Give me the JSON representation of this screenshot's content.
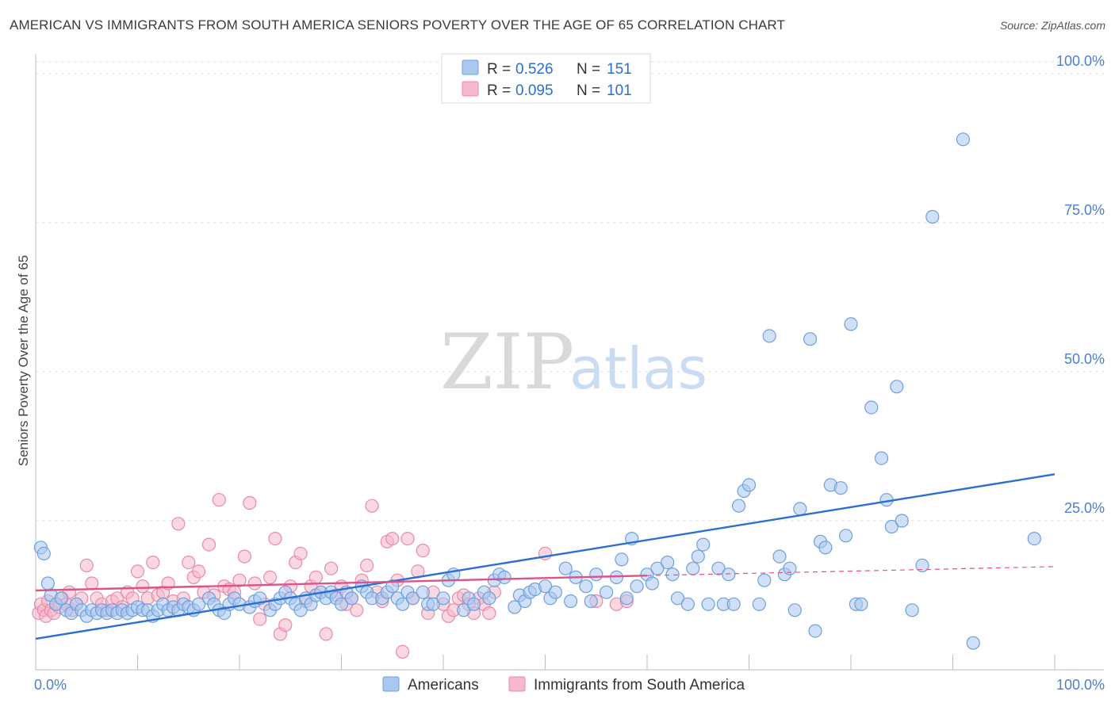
{
  "title": "AMERICAN VS IMMIGRANTS FROM SOUTH AMERICA SENIORS POVERTY OVER THE AGE OF 65 CORRELATION CHART",
  "source": "Source: ZipAtlas.com",
  "watermark": {
    "zip": "ZIP",
    "atlas": "atlas"
  },
  "colors": {
    "americans_fill": "#a9c8f0",
    "americans_stroke": "#6f9fdc",
    "americans_line": "#2a6fd1",
    "immigrants_fill": "#f6b8cb",
    "immigrants_stroke": "#e98aa8",
    "immigrants_line": "#e0518a",
    "tick_text": "#4a7fd1",
    "grid": "#dcdcdc"
  },
  "legend_top": [
    {
      "r_label": "R =",
      "r_value": "0.526",
      "n_label": "N =",
      "n_value": "151",
      "series": "americans"
    },
    {
      "r_label": "R =",
      "r_value": "0.095",
      "n_label": "N =",
      "n_value": "101",
      "series": "immigrants"
    }
  ],
  "chart_data": {
    "type": "scatter",
    "title": "AMERICAN VS IMMIGRANTS FROM SOUTH AMERICA SENIORS POVERTY OVER THE AGE OF 65 CORRELATION CHART",
    "xlabel": "",
    "ylabel": "Seniors Poverty Over the Age of 65",
    "xlim": [
      0,
      100
    ],
    "ylim": [
      0,
      102
    ],
    "y_ticks": [
      {
        "v": 25,
        "label": "25.0%"
      },
      {
        "v": 50,
        "label": "50.0%"
      },
      {
        "v": 75,
        "label": "75.0%"
      },
      {
        "v": 100,
        "label": "100.0%"
      }
    ],
    "x_ticks": [
      {
        "v": 0,
        "label": "0.0%"
      },
      {
        "v": 100,
        "label": "100.0%"
      }
    ],
    "grid": true,
    "legend": "bottom-center",
    "series": [
      {
        "name": "Americans",
        "key": "americans",
        "trend": {
          "x": [
            0,
            100
          ],
          "y": [
            5.2,
            32.8
          ],
          "dashed_from": null
        },
        "points": [
          [
            0.5,
            20.5
          ],
          [
            0.8,
            19.5
          ],
          [
            1.2,
            14.5
          ],
          [
            1.5,
            12.5
          ],
          [
            2,
            11
          ],
          [
            2.5,
            12
          ],
          [
            3,
            10
          ],
          [
            3.5,
            9.5
          ],
          [
            4,
            11
          ],
          [
            4.5,
            10
          ],
          [
            5,
            9
          ],
          [
            5.5,
            10
          ],
          [
            6,
            9.5
          ],
          [
            6.5,
            10
          ],
          [
            7,
            9.5
          ],
          [
            7.5,
            10
          ],
          [
            8,
            9.5
          ],
          [
            8.5,
            10
          ],
          [
            9,
            9.5
          ],
          [
            9.5,
            10
          ],
          [
            10,
            10.5
          ],
          [
            10.5,
            10
          ],
          [
            11,
            10
          ],
          [
            11.5,
            9
          ],
          [
            12,
            10
          ],
          [
            12.5,
            11
          ],
          [
            13,
            10
          ],
          [
            13.5,
            10.5
          ],
          [
            14,
            10
          ],
          [
            14.5,
            11
          ],
          [
            15,
            10.5
          ],
          [
            15.5,
            10
          ],
          [
            16,
            11
          ],
          [
            17,
            12
          ],
          [
            17.5,
            11
          ],
          [
            18,
            10
          ],
          [
            18.5,
            9.5
          ],
          [
            19,
            11
          ],
          [
            19.5,
            12
          ],
          [
            20,
            11
          ],
          [
            21,
            10.5
          ],
          [
            21.5,
            11.5
          ],
          [
            22,
            12
          ],
          [
            23,
            10
          ],
          [
            23.5,
            11
          ],
          [
            24,
            12
          ],
          [
            24.5,
            13
          ],
          [
            25,
            12
          ],
          [
            25.5,
            11
          ],
          [
            26,
            10
          ],
          [
            26.5,
            12
          ],
          [
            27,
            11
          ],
          [
            27.5,
            12.5
          ],
          [
            28,
            13
          ],
          [
            28.5,
            12
          ],
          [
            29,
            13
          ],
          [
            29.5,
            12
          ],
          [
            30,
            11
          ],
          [
            30.5,
            13
          ],
          [
            31,
            12
          ],
          [
            32,
            14
          ],
          [
            32.5,
            13
          ],
          [
            33,
            12
          ],
          [
            34,
            12
          ],
          [
            34.5,
            13
          ],
          [
            35,
            14
          ],
          [
            35.5,
            12
          ],
          [
            36,
            11
          ],
          [
            36.5,
            13
          ],
          [
            37,
            12
          ],
          [
            38,
            13
          ],
          [
            38.5,
            11
          ],
          [
            39,
            11
          ],
          [
            40,
            12
          ],
          [
            40.5,
            15
          ],
          [
            41,
            16
          ],
          [
            42,
            10
          ],
          [
            42.5,
            12
          ],
          [
            43,
            11
          ],
          [
            44,
            13
          ],
          [
            44.5,
            12
          ],
          [
            45,
            15
          ],
          [
            45.5,
            16
          ],
          [
            46,
            15.5
          ],
          [
            47,
            10.5
          ],
          [
            47.5,
            12.5
          ],
          [
            48,
            11.5
          ],
          [
            48.5,
            13
          ],
          [
            49,
            13.5
          ],
          [
            50,
            14
          ],
          [
            50.5,
            12
          ],
          [
            51,
            13
          ],
          [
            52,
            17
          ],
          [
            52.5,
            11.5
          ],
          [
            53,
            15.5
          ],
          [
            54,
            14
          ],
          [
            54.5,
            11.5
          ],
          [
            55,
            16
          ],
          [
            56,
            13
          ],
          [
            57,
            15.5
          ],
          [
            57.5,
            18.5
          ],
          [
            58,
            12
          ],
          [
            58.5,
            22
          ],
          [
            59,
            14
          ],
          [
            60,
            16
          ],
          [
            60.5,
            14.5
          ],
          [
            61,
            17
          ],
          [
            62,
            18
          ],
          [
            62.5,
            16
          ],
          [
            63,
            12
          ],
          [
            64,
            11
          ],
          [
            64.5,
            17
          ],
          [
            65,
            19
          ],
          [
            65.5,
            21
          ],
          [
            66,
            11
          ],
          [
            67,
            17
          ],
          [
            67.5,
            11
          ],
          [
            68,
            16
          ],
          [
            68.5,
            11
          ],
          [
            69,
            27.5
          ],
          [
            69.5,
            30
          ],
          [
            70,
            31
          ],
          [
            71,
            11
          ],
          [
            71.5,
            15
          ],
          [
            72,
            56
          ],
          [
            73,
            19
          ],
          [
            73.5,
            16
          ],
          [
            74,
            17
          ],
          [
            74.5,
            10
          ],
          [
            75,
            27
          ],
          [
            76,
            55.5
          ],
          [
            76.5,
            6.5
          ],
          [
            77,
            21.5
          ],
          [
            77.5,
            20.5
          ],
          [
            78,
            31
          ],
          [
            79,
            30.5
          ],
          [
            79.5,
            22.5
          ],
          [
            80,
            58
          ],
          [
            80.5,
            11
          ],
          [
            81,
            11
          ],
          [
            82,
            44
          ],
          [
            83,
            35.5
          ],
          [
            83.5,
            28.5
          ],
          [
            84,
            24
          ],
          [
            84.5,
            47.5
          ],
          [
            85,
            25
          ],
          [
            86,
            10
          ],
          [
            87,
            17.5
          ],
          [
            88,
            76
          ],
          [
            91,
            89
          ],
          [
            92,
            4.5
          ],
          [
            98,
            22
          ]
        ]
      },
      {
        "name": "Immigrants from South America",
        "key": "immigrants",
        "trend": {
          "x": [
            0,
            60,
            100
          ],
          "y": [
            13.3,
            15.8,
            17.3
          ],
          "dashed_from": 60
        },
        "points": [
          [
            0.3,
            9.5
          ],
          [
            0.5,
            11
          ],
          [
            0.8,
            10
          ],
          [
            1,
            9
          ],
          [
            1.2,
            11.5
          ],
          [
            1.5,
            10
          ],
          [
            1.8,
            9.5
          ],
          [
            2,
            11
          ],
          [
            2.3,
            10.5
          ],
          [
            2.6,
            12
          ],
          [
            3,
            11
          ],
          [
            3.3,
            13
          ],
          [
            3.6,
            10
          ],
          [
            4,
            11
          ],
          [
            4.5,
            12
          ],
          [
            5,
            17.5
          ],
          [
            5.5,
            14.5
          ],
          [
            6,
            12
          ],
          [
            6.5,
            11
          ],
          [
            7,
            10
          ],
          [
            7.5,
            11.5
          ],
          [
            8,
            12
          ],
          [
            8.5,
            10.5
          ],
          [
            9,
            13
          ],
          [
            9.5,
            12
          ],
          [
            10,
            16.5
          ],
          [
            10.5,
            14
          ],
          [
            11,
            12
          ],
          [
            11.5,
            18
          ],
          [
            12,
            12.5
          ],
          [
            12.5,
            13
          ],
          [
            13,
            14.5
          ],
          [
            13.5,
            11.5
          ],
          [
            14,
            24.5
          ],
          [
            14.5,
            12
          ],
          [
            15,
            18
          ],
          [
            15.5,
            15.5
          ],
          [
            16,
            16.5
          ],
          [
            16.5,
            13
          ],
          [
            17,
            21
          ],
          [
            17.5,
            12.5
          ],
          [
            18,
            28.5
          ],
          [
            18.5,
            14
          ],
          [
            19,
            13.5
          ],
          [
            19.5,
            13
          ],
          [
            20,
            15
          ],
          [
            20.5,
            19
          ],
          [
            21,
            28
          ],
          [
            21.5,
            14.5
          ],
          [
            22,
            8.5
          ],
          [
            22.5,
            11
          ],
          [
            23,
            15.5
          ],
          [
            23.5,
            22
          ],
          [
            24,
            6
          ],
          [
            24.5,
            7.5
          ],
          [
            25,
            14
          ],
          [
            25.5,
            18
          ],
          [
            26,
            19.5
          ],
          [
            26.5,
            11.5
          ],
          [
            27,
            14
          ],
          [
            27.5,
            15.5
          ],
          [
            28,
            13
          ],
          [
            28.5,
            6
          ],
          [
            29,
            17
          ],
          [
            29.5,
            12.5
          ],
          [
            30,
            14
          ],
          [
            30.5,
            11
          ],
          [
            31,
            12
          ],
          [
            31.5,
            10
          ],
          [
            32,
            15
          ],
          [
            32.5,
            17.5
          ],
          [
            33,
            27.5
          ],
          [
            33.5,
            13
          ],
          [
            34,
            11.5
          ],
          [
            34.5,
            21.5
          ],
          [
            35,
            22
          ],
          [
            35.5,
            15
          ],
          [
            36,
            3
          ],
          [
            36.5,
            22
          ],
          [
            37,
            12
          ],
          [
            37.5,
            16.5
          ],
          [
            38,
            20
          ],
          [
            38.5,
            9.5
          ],
          [
            39,
            13
          ],
          [
            40,
            11
          ],
          [
            40.5,
            9
          ],
          [
            41,
            10
          ],
          [
            41.5,
            12
          ],
          [
            42,
            12.5
          ],
          [
            42.5,
            11
          ],
          [
            43,
            9.5
          ],
          [
            43.5,
            12
          ],
          [
            44,
            11
          ],
          [
            44.5,
            9.5
          ],
          [
            45,
            13
          ],
          [
            50,
            19.5
          ],
          [
            55,
            11.5
          ],
          [
            57,
            11
          ],
          [
            58,
            11.5
          ]
        ]
      }
    ]
  }
}
